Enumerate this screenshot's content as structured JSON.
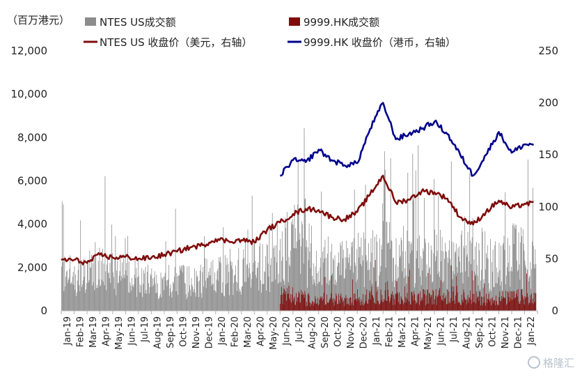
{
  "chart_data": {
    "type": "bar+line",
    "unit_label": "（百万港元）",
    "watermark": "格隆汇",
    "x_labels": [
      "Jan-19",
      "Feb-19",
      "Mar-19",
      "Apr-19",
      "May-19",
      "Jun-19",
      "Jul-19",
      "Aug-19",
      "Sep-19",
      "Oct-19",
      "Nov-19",
      "Dec-19",
      "Jan-20",
      "Feb-20",
      "Mar-20",
      "Apr-20",
      "May-20",
      "Jun-20",
      "Jul-20",
      "Aug-20",
      "Sep-20",
      "Oct-20",
      "Nov-20",
      "Dec-20",
      "Jan-21",
      "Feb-21",
      "Mar-21",
      "Apr-21",
      "May-21",
      "Jun-21",
      "Jul-21",
      "Aug-21",
      "Sep-21",
      "Oct-21",
      "Nov-21",
      "Dec-21",
      "Jan-22"
    ],
    "y_left": {
      "min": 0,
      "max": 12000,
      "ticks": [
        "0",
        "2,000",
        "4,000",
        "6,000",
        "8,000",
        "10,000",
        "12,000"
      ]
    },
    "y_right": {
      "min": 0,
      "max": 250,
      "ticks": [
        "0",
        "50",
        "100",
        "150",
        "200",
        "250"
      ]
    },
    "series": [
      {
        "name": "NTES US成交额",
        "kind": "bar",
        "axis": "left",
        "color": "#8c8c8c",
        "x_start": "Jan-19",
        "x_end": "Feb-22",
        "approx_level_by_month": [
          1800,
          1700,
          2200,
          2000,
          1800,
          1700,
          1500,
          1400,
          1600,
          1500,
          1500,
          1700,
          1800,
          2000,
          2600,
          2200,
          2100,
          3400,
          3700,
          2900,
          2600,
          2400,
          2400,
          2500,
          2700,
          2900,
          3000,
          2500,
          2300,
          2600,
          2300,
          3100,
          2700,
          2300,
          2500,
          2900,
          2400,
          1500
        ],
        "approx_peak": 9700
      },
      {
        "name": "9999.HK成交额",
        "kind": "bar",
        "axis": "left",
        "color": "#7f0d0d",
        "x_start": "Jun-20",
        "x_end": "Feb-22",
        "approx_level_by_month": [
          800,
          700,
          600,
          650,
          550,
          600,
          700,
          800,
          700,
          600,
          650,
          700,
          750,
          800,
          700,
          650,
          600,
          650,
          700,
          600,
          500
        ],
        "approx_peak": 4300
      },
      {
        "name": "NTES US 收盘价（美元，右轴）",
        "kind": "line",
        "axis": "right",
        "color": "#7f0d0d",
        "points": [
          [
            "Jan-19",
            49
          ],
          [
            "Feb-19",
            49
          ],
          [
            "Mar-19",
            46
          ],
          [
            "Apr-19",
            54
          ],
          [
            "May-19",
            51
          ],
          [
            "Jun-19",
            52
          ],
          [
            "Jul-19",
            50
          ],
          [
            "Aug-19",
            51
          ],
          [
            "Sep-19",
            54
          ],
          [
            "Oct-19",
            57
          ],
          [
            "Nov-19",
            61
          ],
          [
            "Dec-19",
            63
          ],
          [
            "Jan-20",
            69
          ],
          [
            "Feb-20",
            67
          ],
          [
            "Mar-20",
            68
          ],
          [
            "Apr-20",
            66
          ],
          [
            "May-20",
            78
          ],
          [
            "Jun-20",
            85
          ],
          [
            "Jul-20",
            93
          ],
          [
            "Aug-20",
            98
          ],
          [
            "Sep-20",
            97
          ],
          [
            "Oct-20",
            90
          ],
          [
            "Nov-20",
            88
          ],
          [
            "Dec-20",
            95
          ],
          [
            "Jan-21",
            112
          ],
          [
            "Feb-21",
            130
          ],
          [
            "Mar-21",
            104
          ],
          [
            "Apr-21",
            107
          ],
          [
            "May-21",
            115
          ],
          [
            "Jun-21",
            114
          ],
          [
            "Jul-21",
            108
          ],
          [
            "Aug-21",
            90
          ],
          [
            "Sep-21",
            83
          ],
          [
            "Oct-21",
            95
          ],
          [
            "Nov-21",
            106
          ],
          [
            "Dec-21",
            99
          ],
          [
            "Jan-22",
            103
          ]
        ]
      },
      {
        "name": "9999.HK 收盘价（港币，右轴）",
        "kind": "line",
        "axis": "right",
        "color": "#00008b",
        "points": [
          [
            "Jun-20",
            130
          ],
          [
            "Jul-20",
            145
          ],
          [
            "Aug-20",
            143
          ],
          [
            "Sep-20",
            155
          ],
          [
            "Oct-20",
            145
          ],
          [
            "Nov-20",
            140
          ],
          [
            "Dec-20",
            142
          ],
          [
            "Jan-21",
            175
          ],
          [
            "Feb-21",
            200
          ],
          [
            "Mar-21",
            165
          ],
          [
            "Apr-21",
            170
          ],
          [
            "May-21",
            175
          ],
          [
            "Jun-21",
            182
          ],
          [
            "Jul-21",
            170
          ],
          [
            "Aug-21",
            150
          ],
          [
            "Sep-21",
            130
          ],
          [
            "Oct-21",
            150
          ],
          [
            "Nov-21",
            172
          ],
          [
            "Dec-21",
            152
          ],
          [
            "Jan-22",
            160
          ]
        ]
      }
    ],
    "legend_position": "top"
  }
}
